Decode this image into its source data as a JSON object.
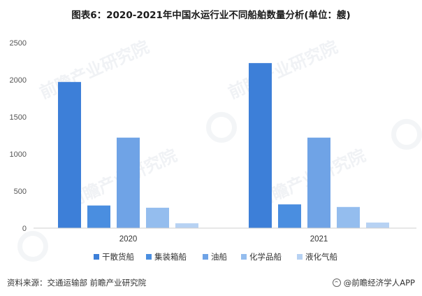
{
  "title": "图表6：2020-2021年中国水运行业不同船舶数量分析(单位：艘)",
  "source": "资料来源：交通运输部 前瞻产业研究院",
  "brand": "@前瞻经济学人APP",
  "watermark_text": "前瞻产业研究院",
  "chart_data": {
    "type": "bar",
    "title": "图表6：2020-2021年中国水运行业不同船舶数量分析(单位：艘)",
    "categories": [
      "2020",
      "2021"
    ],
    "series": [
      {
        "name": "干散货船",
        "values": [
          1970,
          2225
        ],
        "color": "#3d7fd8"
      },
      {
        "name": "集装箱船",
        "values": [
          305,
          320
        ],
        "color": "#4a8ee0"
      },
      {
        "name": "油船",
        "values": [
          1220,
          1220
        ],
        "color": "#6fa3e6"
      },
      {
        "name": "化学品船",
        "values": [
          275,
          285
        ],
        "color": "#94bdee"
      },
      {
        "name": "液化气船",
        "values": [
          65,
          75
        ],
        "color": "#b7d2f3"
      }
    ],
    "ylim": [
      0,
      2500
    ],
    "yticks": [
      0,
      500,
      1000,
      1500,
      2000,
      2500
    ],
    "grid": false,
    "legend_position": "bottom"
  }
}
